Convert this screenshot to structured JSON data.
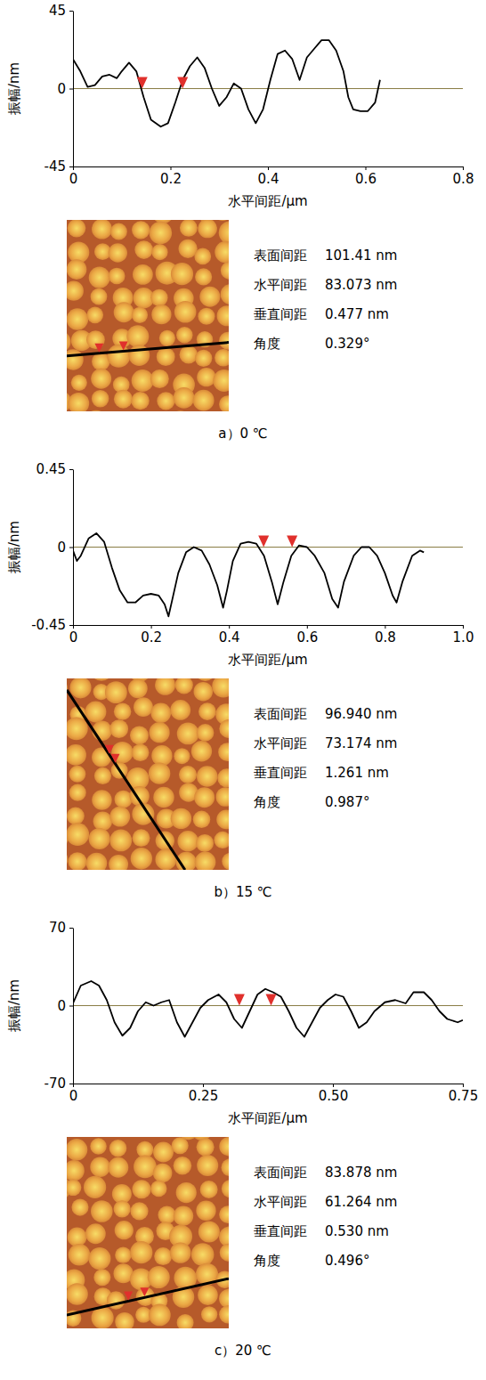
{
  "chart_data": [
    {
      "type": "line",
      "title": "a）0 ℃",
      "x_label": "水平间距/μm",
      "y_label": "振幅/nm",
      "color": "#000000",
      "grid": true,
      "xlim": [
        0,
        0.8
      ],
      "xticks": [
        0,
        0.2,
        0.4,
        0.6,
        0.8
      ],
      "ylim": [
        -45,
        45
      ],
      "yticks": [
        -45,
        0,
        45
      ],
      "x": [
        0,
        0.015,
        0.03,
        0.045,
        0.06,
        0.075,
        0.09,
        0.1,
        0.115,
        0.13,
        0.145,
        0.16,
        0.18,
        0.195,
        0.21,
        0.225,
        0.24,
        0.255,
        0.27,
        0.285,
        0.3,
        0.315,
        0.33,
        0.345,
        0.36,
        0.375,
        0.39,
        0.405,
        0.42,
        0.435,
        0.45,
        0.465,
        0.48,
        0.495,
        0.51,
        0.525,
        0.54,
        0.555,
        0.565,
        0.575,
        0.59,
        0.605,
        0.62,
        0.63
      ],
      "values": [
        17,
        10,
        1,
        2,
        7,
        8,
        6,
        10,
        15,
        10,
        -5,
        -18,
        -22,
        -20,
        -8,
        5,
        13,
        18,
        12,
        0,
        -10,
        -5,
        3,
        0,
        -12,
        -20,
        -12,
        5,
        20,
        22,
        17,
        5,
        18,
        23,
        28,
        28,
        22,
        10,
        -5,
        -12,
        -13,
        -13,
        -8,
        5
      ],
      "cursors": [
        {
          "x": 0.142,
          "y": 0
        },
        {
          "x": 0.225,
          "y": 0
        }
      ],
      "measurements": [
        {
          "label": "表面间距",
          "value": "101.41 nm"
        },
        {
          "label": "水平间距",
          "value": "83.073 nm"
        },
        {
          "label": "垂直间距",
          "value": "0.477 nm"
        },
        {
          "label": "角度",
          "value": "0.329°"
        }
      ]
    },
    {
      "type": "line",
      "title": "b）15 ℃",
      "x_label": "水平间距/μm",
      "y_label": "振幅/nm",
      "color": "#000000",
      "grid": true,
      "xlim": [
        0,
        1
      ],
      "xticks": [
        0,
        0.2,
        0.4,
        0.6,
        0.8,
        {
          "value": 1,
          "label": "1.0"
        }
      ],
      "ylim": [
        -0.45,
        0.45
      ],
      "yticks": [
        -0.45,
        0,
        0.45
      ],
      "x": [
        0,
        0.01,
        0.02,
        0.04,
        0.06,
        0.08,
        0.1,
        0.12,
        0.14,
        0.16,
        0.18,
        0.2,
        0.22,
        0.235,
        0.245,
        0.255,
        0.27,
        0.29,
        0.31,
        0.33,
        0.35,
        0.37,
        0.385,
        0.395,
        0.41,
        0.43,
        0.45,
        0.47,
        0.49,
        0.51,
        0.525,
        0.54,
        0.56,
        0.58,
        0.6,
        0.62,
        0.645,
        0.665,
        0.68,
        0.695,
        0.72,
        0.74,
        0.76,
        0.78,
        0.8,
        0.82,
        0.83,
        0.845,
        0.87,
        0.89,
        0.9
      ],
      "values": [
        -0.02,
        -0.08,
        -0.05,
        0.05,
        0.08,
        0.03,
        -0.12,
        -0.25,
        -0.32,
        -0.32,
        -0.28,
        -0.27,
        -0.28,
        -0.33,
        -0.4,
        -0.3,
        -0.15,
        -0.03,
        0,
        -0.02,
        -0.1,
        -0.22,
        -0.35,
        -0.25,
        -0.08,
        0.02,
        0.03,
        0.02,
        -0.05,
        -0.2,
        -0.33,
        -0.2,
        -0.05,
        0.01,
        0,
        -0.05,
        -0.15,
        -0.3,
        -0.35,
        -0.2,
        -0.05,
        0,
        0,
        -0.05,
        -0.15,
        -0.28,
        -0.32,
        -0.2,
        -0.05,
        -0.02,
        -0.03
      ],
      "cursors": [
        {
          "x": 0.489,
          "y": 0
        },
        {
          "x": 0.562,
          "y": 0
        }
      ],
      "measurements": [
        {
          "label": "表面间距",
          "value": "96.940 nm"
        },
        {
          "label": "水平间距",
          "value": "73.174 nm"
        },
        {
          "label": "垂直间距",
          "value": "1.261 nm"
        },
        {
          "label": "角度",
          "value": "0.987°"
        }
      ]
    },
    {
      "type": "line",
      "title": "c）20 ℃",
      "x_label": "水平间距/μm",
      "y_label": "振幅/nm",
      "color": "#000000",
      "grid": true,
      "xlim": [
        0,
        0.75
      ],
      "xticks": [
        0,
        0.25,
        {
          "value": 0.5,
          "label": "0.50"
        },
        0.75
      ],
      "ylim": [
        -70,
        70
      ],
      "yticks": [
        -70,
        0,
        70
      ],
      "x": [
        0,
        0.015,
        0.035,
        0.05,
        0.065,
        0.08,
        0.095,
        0.11,
        0.125,
        0.14,
        0.155,
        0.17,
        0.185,
        0.2,
        0.215,
        0.23,
        0.245,
        0.26,
        0.28,
        0.295,
        0.31,
        0.325,
        0.34,
        0.355,
        0.37,
        0.385,
        0.4,
        0.415,
        0.43,
        0.445,
        0.46,
        0.475,
        0.49,
        0.505,
        0.52,
        0.535,
        0.55,
        0.565,
        0.58,
        0.6,
        0.62,
        0.64,
        0.655,
        0.675,
        0.69,
        0.705,
        0.72,
        0.74,
        0.75
      ],
      "values": [
        2,
        18,
        22,
        18,
        5,
        -15,
        -27,
        -20,
        -5,
        3,
        0,
        3,
        5,
        -15,
        -28,
        -15,
        -2,
        5,
        10,
        3,
        -12,
        -20,
        -5,
        10,
        15,
        12,
        8,
        -5,
        -20,
        -28,
        -15,
        -2,
        5,
        10,
        8,
        -5,
        -20,
        -15,
        -5,
        3,
        5,
        2,
        12,
        12,
        5,
        -5,
        -12,
        -15,
        -13
      ],
      "cursors": [
        {
          "x": 0.32,
          "y": 0
        },
        {
          "x": 0.381,
          "y": 0
        }
      ],
      "measurements": [
        {
          "label": "表面间距",
          "value": "83.878 nm"
        },
        {
          "label": "水平间距",
          "value": "61.264 nm"
        },
        {
          "label": "垂直间距",
          "value": "0.530 nm"
        },
        {
          "label": "角度",
          "value": "0.496°"
        }
      ]
    }
  ]
}
